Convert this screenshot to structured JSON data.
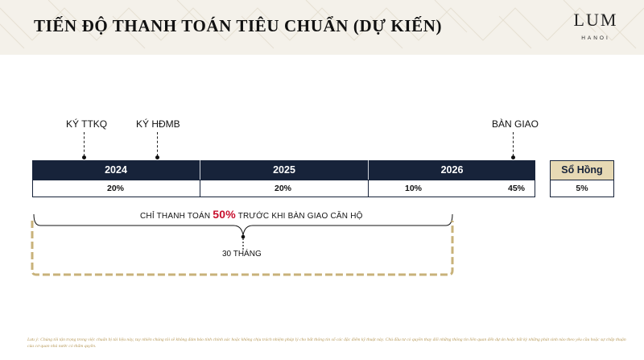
{
  "header": {
    "title": "TIẾN ĐỘ THANH TOÁN TIÊU CHUẨN (DỰ KIẾN)",
    "logo_word": "LUM",
    "logo_sub": "HANOI"
  },
  "milestones": {
    "ttkq": "KÝ TTKQ",
    "hdmb": "KÝ HĐMB",
    "handover": "BÀN GIAO"
  },
  "timeline": {
    "years": [
      "2024",
      "2025",
      "2026"
    ],
    "payments": [
      "20%",
      "20%",
      "10%",
      "45%"
    ]
  },
  "pink_book": {
    "label": "Sổ Hồng",
    "value": "5%"
  },
  "note": {
    "prefix": "CHỈ THANH TOÁN",
    "highlight": "50%",
    "suffix": "TRƯỚC KHI BÀN GIAO CĂN HỘ",
    "duration": "30 THÁNG"
  },
  "colors": {
    "navy": "#17233a",
    "gold": "#c8b27a",
    "highlight_red": "#c8102e",
    "pink_book_bg": "#e7d9b4"
  },
  "disclaimer": "Lưu ý: Chúng tôi tận trọng trong việc chuẩn bị tài liệu này, tuy nhiên chúng tôi sẽ không đảm bảo tính chính xác hoặc không chịu trách nhiệm pháp lý cho bất thông tin số các đặc điểm kỹ thuật này. Chủ đầu tư có quyền thay đổi những thông tin liên quan đến dự án hoặc bất kỳ những phát sinh nào theo yêu cầu hoặc sự chấp thuận của cơ quan nhà nước có thẩm quyền."
}
